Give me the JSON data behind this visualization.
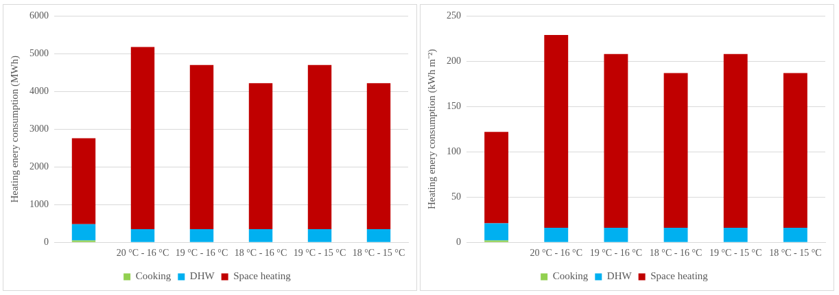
{
  "chart_data": [
    {
      "type": "bar",
      "stacked": true,
      "ylabel": "Heating enery consumption (MWh)",
      "categories": [
        null,
        "20 °C - 16 °C",
        "19 °C - 16 °C",
        "18 °C - 16 °C",
        "19 °C - 15 °C",
        "18 °C - 15 °C"
      ],
      "series": [
        {
          "name": "Cooking",
          "color": "#92d050",
          "values": [
            50,
            0,
            0,
            0,
            0,
            0
          ]
        },
        {
          "name": "DHW",
          "color": "#00b0f0",
          "values": [
            430,
            350,
            350,
            350,
            350,
            350
          ]
        },
        {
          "name": "Space heating",
          "color": "#c00000",
          "values": [
            2280,
            4830,
            4350,
            3870,
            4350,
            3870
          ]
        }
      ],
      "ylim": [
        0,
        6000
      ],
      "yticks": [
        0,
        1000,
        2000,
        3000,
        4000,
        5000,
        6000
      ],
      "grid": "y",
      "legend": "bottom"
    },
    {
      "type": "bar",
      "stacked": true,
      "ylabel": "Heating enery consumption (kWh m⁻²)",
      "categories": [
        null,
        "20 °C - 16 °C",
        "19 °C - 16 °C",
        "18 °C - 16 °C",
        "19 °C - 15 °C",
        "18 °C - 15 °C"
      ],
      "series": [
        {
          "name": "Cooking",
          "color": "#92d050",
          "values": [
            2,
            0,
            0,
            0,
            0,
            0
          ]
        },
        {
          "name": "DHW",
          "color": "#00b0f0",
          "values": [
            19,
            16,
            16,
            16,
            16,
            16
          ]
        },
        {
          "name": "Space heating",
          "color": "#c00000",
          "values": [
            101,
            213,
            192,
            171,
            192,
            171
          ]
        }
      ],
      "ylim": [
        0,
        250
      ],
      "yticks": [
        0,
        50,
        100,
        150,
        200,
        250
      ],
      "grid": "y",
      "legend": "bottom"
    }
  ]
}
